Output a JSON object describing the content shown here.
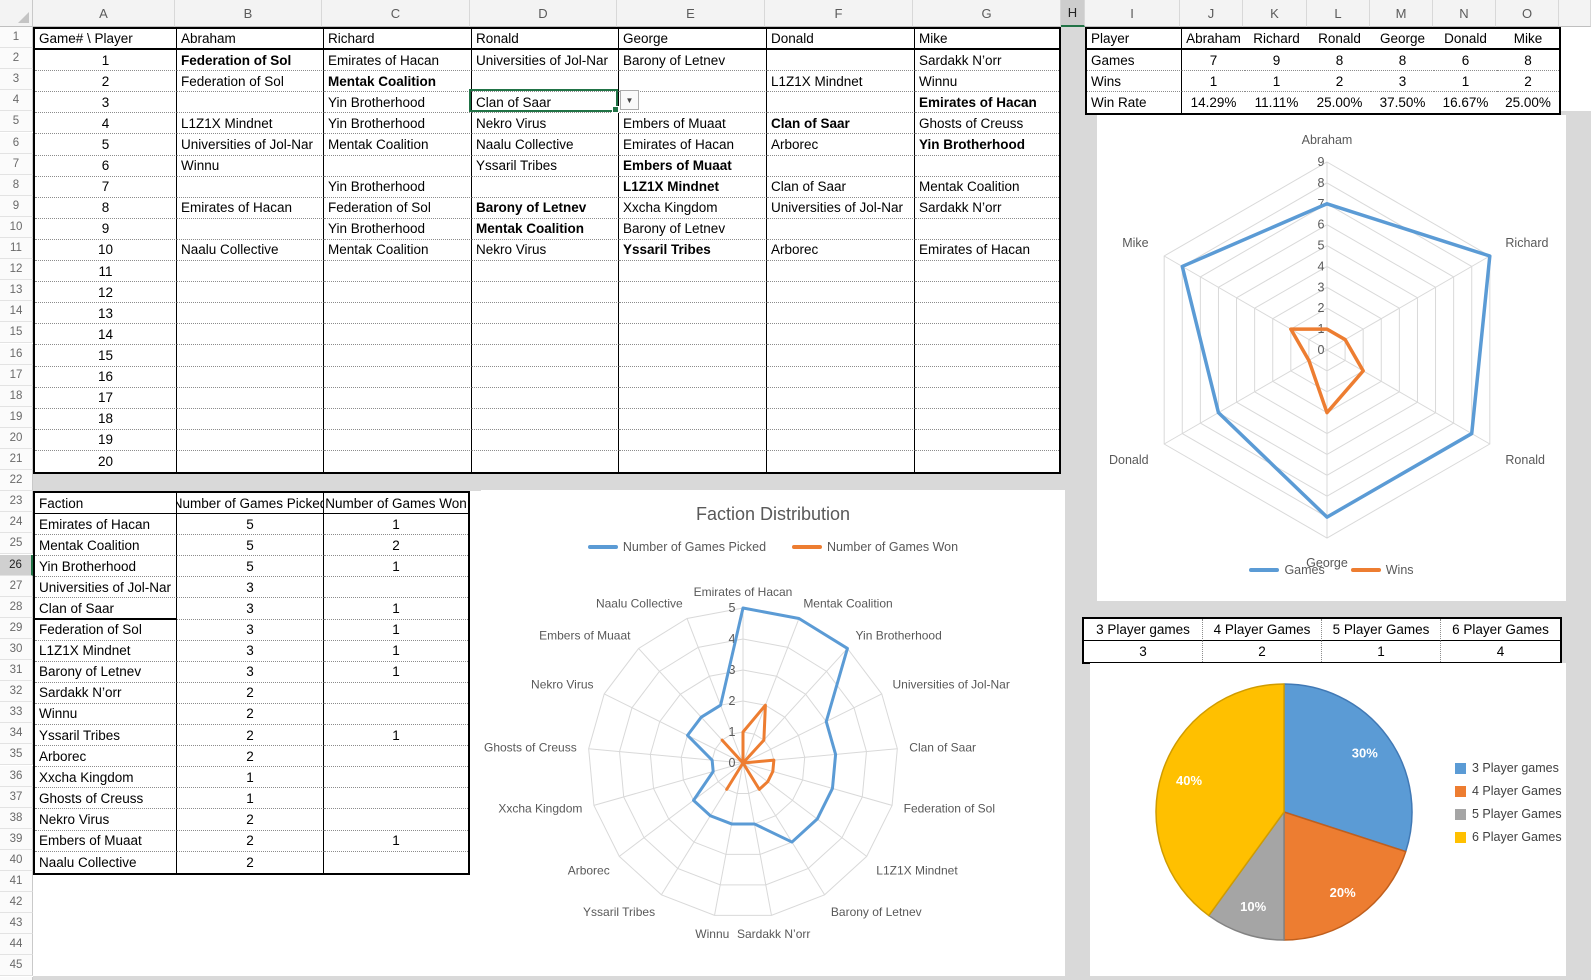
{
  "sheet": {
    "column_letters": [
      "A",
      "B",
      "C",
      "D",
      "E",
      "F",
      "G",
      "H",
      "I",
      "J",
      "K",
      "L",
      "M",
      "N",
      "O"
    ],
    "visible_rows": 46,
    "highlighted_column": "H",
    "highlighted_row": 26,
    "selected_cell": {
      "ref": "D4",
      "value": "Clan of Saar",
      "dropdown_icon": "chevron-down-icon"
    }
  },
  "main_table": {
    "header": [
      "Game# \\ Player",
      "Abraham",
      "Richard",
      "Ronald",
      "George",
      "Donald",
      "Mike"
    ],
    "rows": [
      {
        "game": "1",
        "cells": [
          "Federation of Sol",
          "Emirates of Hacan",
          "Universities of Jol-Nar",
          "Barony of Letnev",
          "",
          "Sardakk N’orr"
        ],
        "bold": [
          0
        ]
      },
      {
        "game": "2",
        "cells": [
          "Federation of Sol",
          "Mentak Coalition",
          "",
          "",
          "L1Z1X Mindnet",
          "Winnu"
        ],
        "bold": [
          1
        ]
      },
      {
        "game": "3",
        "cells": [
          "",
          "Yin Brotherhood",
          "Clan of Saar",
          "",
          "",
          "Emirates of Hacan"
        ],
        "bold": [
          5
        ]
      },
      {
        "game": "4",
        "cells": [
          "L1Z1X Mindnet",
          "Yin Brotherhood",
          "Nekro Virus",
          "Embers of Muaat",
          "Clan of Saar",
          "Ghosts of Creuss"
        ],
        "bold": [
          4
        ]
      },
      {
        "game": "5",
        "cells": [
          "Universities of Jol-Nar",
          "Mentak Coalition",
          "Naalu Collective",
          "Emirates of Hacan",
          "Arborec",
          "Yin Brotherhood"
        ],
        "bold": [
          5
        ]
      },
      {
        "game": "6",
        "cells": [
          "Winnu",
          "",
          "Yssaril Tribes",
          "Embers of Muaat",
          "",
          ""
        ],
        "bold": [
          3
        ]
      },
      {
        "game": "7",
        "cells": [
          "",
          "Yin Brotherhood",
          "",
          "L1Z1X Mindnet",
          "Clan of Saar",
          "Mentak Coalition"
        ],
        "bold": [
          3
        ]
      },
      {
        "game": "8",
        "cells": [
          "Emirates of Hacan",
          "Federation of Sol",
          "Barony of Letnev",
          "Xxcha Kingdom",
          "Universities of Jol-Nar",
          "Sardakk N’orr"
        ],
        "bold": [
          2
        ]
      },
      {
        "game": "9",
        "cells": [
          "",
          "Yin Brotherhood",
          "Mentak Coalition",
          "Barony of Letnev",
          "",
          ""
        ],
        "bold": [
          2
        ]
      },
      {
        "game": "10",
        "cells": [
          "Naalu Collective",
          "Mentak Coalition",
          "Nekro Virus",
          "Yssaril Tribes",
          "Arborec",
          "Emirates of Hacan"
        ],
        "bold": [
          3
        ]
      },
      {
        "game": "11",
        "cells": [
          "",
          "",
          "",
          "",
          "",
          ""
        ],
        "bold": []
      },
      {
        "game": "12",
        "cells": [
          "",
          "",
          "",
          "",
          "",
          ""
        ],
        "bold": []
      },
      {
        "game": "13",
        "cells": [
          "",
          "",
          "",
          "",
          "",
          ""
        ],
        "bold": []
      },
      {
        "game": "14",
        "cells": [
          "",
          "",
          "",
          "",
          "",
          ""
        ],
        "bold": []
      },
      {
        "game": "15",
        "cells": [
          "",
          "",
          "",
          "",
          "",
          ""
        ],
        "bold": []
      },
      {
        "game": "16",
        "cells": [
          "",
          "",
          "",
          "",
          "",
          ""
        ],
        "bold": []
      },
      {
        "game": "17",
        "cells": [
          "",
          "",
          "",
          "",
          "",
          ""
        ],
        "bold": []
      },
      {
        "game": "18",
        "cells": [
          "",
          "",
          "",
          "",
          "",
          ""
        ],
        "bold": []
      },
      {
        "game": "19",
        "cells": [
          "",
          "",
          "",
          "",
          "",
          ""
        ],
        "bold": []
      },
      {
        "game": "20",
        "cells": [
          "",
          "",
          "",
          "",
          "",
          ""
        ],
        "bold": []
      }
    ]
  },
  "faction_table": {
    "header": [
      "Faction",
      "Number of Games Picked",
      "Number of Games Won"
    ],
    "rows": [
      [
        "Emirates of Hacan",
        "5",
        "1"
      ],
      [
        "Mentak Coalition",
        "5",
        "2"
      ],
      [
        "Yin Brotherhood",
        "5",
        "1"
      ],
      [
        "Universities of Jol-Nar",
        "3",
        ""
      ],
      [
        "Clan of Saar",
        "3",
        "1"
      ],
      [
        "Federation of Sol",
        "3",
        "1"
      ],
      [
        "L1Z1X Mindnet",
        "3",
        "1"
      ],
      [
        "Barony of Letnev",
        "3",
        "1"
      ],
      [
        "Sardakk N’orr",
        "2",
        ""
      ],
      [
        "Winnu",
        "2",
        ""
      ],
      [
        "Yssaril Tribes",
        "2",
        "1"
      ],
      [
        "Arborec",
        "2",
        ""
      ],
      [
        "Xxcha Kingdom",
        "1",
        ""
      ],
      [
        "Ghosts of Creuss",
        "1",
        ""
      ],
      [
        "Nekro Virus",
        "2",
        ""
      ],
      [
        "Embers of Muaat",
        "2",
        "1"
      ],
      [
        "Naalu Collective",
        "2",
        ""
      ]
    ]
  },
  "player_table": {
    "corner_label": "Player",
    "row_labels": [
      "Games",
      "Wins",
      "Win Rate"
    ],
    "players": [
      "Abraham",
      "Richard",
      "Ronald",
      "George",
      "Donald",
      "Mike"
    ],
    "games": [
      "7",
      "9",
      "8",
      "8",
      "6",
      "8"
    ],
    "wins": [
      "1",
      "1",
      "2",
      "3",
      "1",
      "2"
    ],
    "win_rate": [
      "14.29%",
      "11.11%",
      "25.00%",
      "37.50%",
      "16.67%",
      "25.00%"
    ]
  },
  "player_count_table": {
    "headers": [
      "3 Player games",
      "4 Player Games",
      "5 Player Games",
      "6 Player Games"
    ],
    "values": [
      "3",
      "2",
      "1",
      "4"
    ]
  },
  "colors": {
    "blue": "#5B9BD5",
    "orange": "#ED7D31",
    "gray": "#A5A5A5",
    "yellow": "#FFC000",
    "selection_green": "#217346",
    "chart_text": "#595959",
    "ring_line": "#D9D9D9"
  },
  "chart_data": [
    {
      "id": "faction_radar",
      "type": "radar",
      "title": "Faction Distribution",
      "categories": [
        "Emirates of Hacan",
        "Mentak Coalition",
        "Yin Brotherhood",
        "Universities of Jol-Nar",
        "Clan of Saar",
        "Federation of Sol",
        "L1Z1X Mindnet",
        "Barony of Letnev",
        "Sardakk N’orr",
        "Winnu",
        "Yssaril Tribes",
        "Arborec",
        "Xxcha Kingdom",
        "Ghosts of Creuss",
        "Nekro Virus",
        "Embers of Muaat",
        "Naalu Collective"
      ],
      "series": [
        {
          "name": "Number of Games Picked",
          "color": "#5B9BD5",
          "values": [
            5,
            5,
            5,
            3,
            3,
            3,
            3,
            3,
            2,
            2,
            2,
            2,
            1,
            1,
            2,
            2,
            2
          ]
        },
        {
          "name": "Number of Games Won",
          "color": "#ED7D31",
          "values": [
            1,
            2,
            1,
            0,
            1,
            1,
            1,
            1,
            0,
            0,
            1,
            0,
            0,
            0,
            0,
            1,
            0
          ]
        }
      ],
      "rmax": 5,
      "ticks": [
        0,
        1,
        2,
        3,
        4,
        5
      ],
      "grid": true,
      "legend_position": "top"
    },
    {
      "id": "player_radar",
      "type": "radar",
      "title": "",
      "categories": [
        "Abraham",
        "Richard",
        "Ronald",
        "George",
        "Donald",
        "Mike"
      ],
      "series": [
        {
          "name": "Games",
          "color": "#5B9BD5",
          "values": [
            7,
            9,
            8,
            8,
            6,
            8
          ]
        },
        {
          "name": "Wins",
          "color": "#ED7D31",
          "values": [
            1,
            1,
            2,
            3,
            1,
            2
          ]
        }
      ],
      "rmax": 9,
      "ticks": [
        0,
        1,
        2,
        3,
        4,
        5,
        6,
        7,
        8,
        9
      ],
      "grid": true,
      "legend_position": "bottom"
    },
    {
      "id": "player_count_pie",
      "type": "pie",
      "categories": [
        "3 Player games",
        "4 Player Games",
        "5 Player Games",
        "6 Player Games"
      ],
      "values": [
        3,
        2,
        1,
        4
      ],
      "percent_labels": [
        "30%",
        "20%",
        "10%",
        "40%"
      ],
      "colors": [
        "#5B9BD5",
        "#ED7D31",
        "#A5A5A5",
        "#FFC000"
      ],
      "legend_position": "right"
    }
  ]
}
